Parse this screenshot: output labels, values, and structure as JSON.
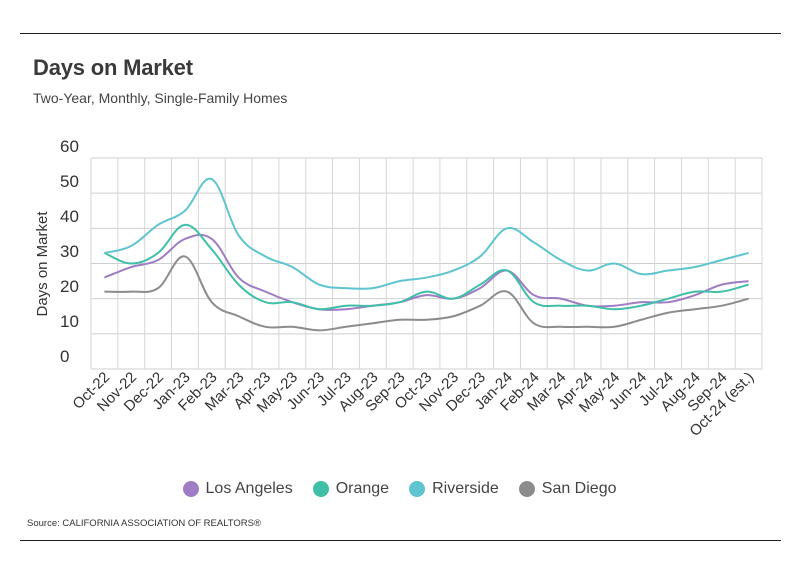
{
  "header": {
    "title": "Days on Market",
    "subtitle": "Two-Year, Monthly, Single-Family Homes"
  },
  "source": "Source:  CALIFORNIA ASSOCIATION OF REALTORS®",
  "chart_data": {
    "type": "line",
    "title": "Days on Market",
    "subtitle": "Two-Year, Monthly, Single-Family Homes",
    "xlabel": "",
    "ylabel": "Days on Market",
    "ylim": [
      0,
      60
    ],
    "yticks": [
      0,
      10,
      20,
      30,
      40,
      50,
      60
    ],
    "grid": true,
    "legend_position": "bottom",
    "categories": [
      "Oct-22",
      "Nov-22",
      "Dec-22",
      "Jan-23",
      "Feb-23",
      "Mar-23",
      "Apr-23",
      "May-23",
      "Jun-23",
      "Jul-23",
      "Aug-23",
      "Sep-23",
      "Oct-23",
      "Nov-23",
      "Dec-23",
      "Jan-24",
      "Feb-24",
      "Mar-24",
      "Apr-24",
      "May-24",
      "Jun-24",
      "Jul-24",
      "Aug-24",
      "Sep-24",
      "Oct-24 (est.)"
    ],
    "series": [
      {
        "name": "Los Angeles",
        "color": "#a07cc5",
        "values": [
          26,
          29,
          31,
          37,
          37,
          26,
          22,
          19,
          17,
          17,
          18,
          19,
          21,
          20,
          23,
          28,
          21,
          20,
          18,
          18,
          19,
          19,
          21,
          24,
          25
        ]
      },
      {
        "name": "Orange",
        "color": "#3fbfa8",
        "values": [
          33,
          30,
          33,
          41,
          34,
          24,
          19,
          19,
          17,
          18,
          18,
          19,
          22,
          20,
          24,
          28,
          19,
          18,
          18,
          17,
          18,
          20,
          22,
          22,
          24
        ]
      },
      {
        "name": "Riverside",
        "color": "#5ec4cf",
        "values": [
          33,
          35,
          41,
          45,
          54,
          38,
          32,
          29,
          24,
          23,
          23,
          25,
          26,
          28,
          32,
          40,
          36,
          31,
          28,
          30,
          27,
          28,
          29,
          31,
          33
        ]
      },
      {
        "name": "San Diego",
        "color": "#8c8c8c",
        "values": [
          22,
          22,
          23,
          32,
          19,
          15,
          12,
          12,
          11,
          12,
          13,
          14,
          14,
          15,
          18,
          22,
          13,
          12,
          12,
          12,
          14,
          16,
          17,
          18,
          20
        ]
      }
    ]
  }
}
